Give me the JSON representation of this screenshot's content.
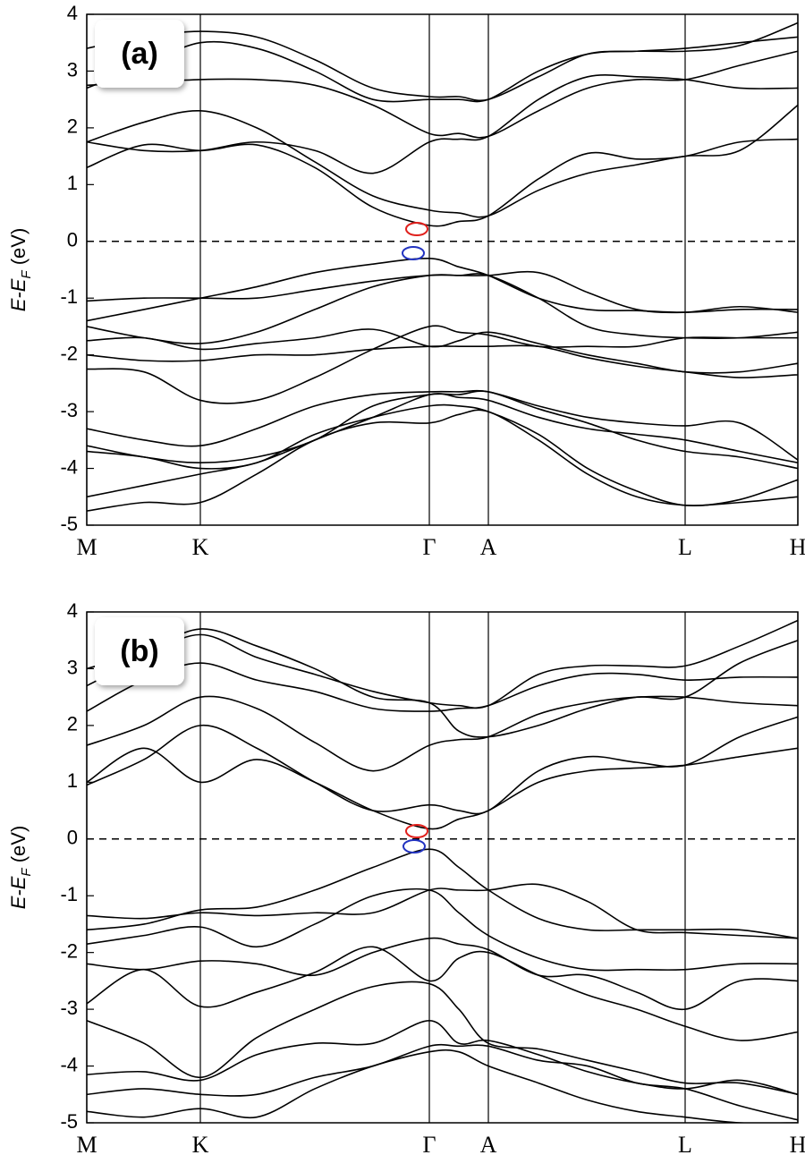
{
  "chart_data": [
    {
      "type": "line",
      "panel_label": "(a)",
      "ylabel": [
        "E-E",
        "F",
        " (eV)"
      ],
      "xlim": [
        0,
        7.95
      ],
      "ylim": [
        -5,
        4
      ],
      "yticks": [
        4,
        3,
        2,
        1,
        0,
        -1,
        -2,
        -3,
        -4,
        -5
      ],
      "xticks": [
        {
          "value": 0,
          "label": "M"
        },
        {
          "value": 1.27,
          "label": "K"
        },
        {
          "value": 3.83,
          "label": "Γ"
        },
        {
          "value": 4.49,
          "label": "A"
        },
        {
          "value": 6.69,
          "label": "L"
        },
        {
          "value": 7.95,
          "label": "H"
        }
      ],
      "hline": 0,
      "x": [
        0,
        0.64,
        1.27,
        1.9,
        2.55,
        3.2,
        3.83,
        4.16,
        4.49,
        5.05,
        5.6,
        6.15,
        6.69,
        7.3,
        7.95
      ],
      "series": [
        {
          "color": "#000000",
          "values": [
            1.3,
            1.7,
            1.6,
            1.7,
            1.3,
            0.6,
            0.28,
            0.35,
            0.45,
            1.1,
            1.55,
            1.45,
            1.5,
            1.75,
            1.8
          ]
        },
        {
          "color": "#000000",
          "values": [
            1.75,
            2.1,
            2.3,
            2.0,
            1.4,
            0.8,
            0.55,
            0.5,
            0.45,
            0.9,
            1.2,
            1.35,
            1.5,
            1.6,
            2.4
          ]
        },
        {
          "color": "#000000",
          "values": [
            1.75,
            1.6,
            1.6,
            1.75,
            1.6,
            1.2,
            1.75,
            1.8,
            1.85,
            2.5,
            2.9,
            2.9,
            2.85,
            2.7,
            2.7
          ]
        },
        {
          "color": "#000000",
          "values": [
            2.75,
            2.8,
            2.85,
            2.85,
            2.75,
            2.4,
            1.9,
            1.9,
            1.85,
            2.3,
            2.7,
            2.85,
            2.85,
            3.1,
            3.35
          ]
        },
        {
          "color": "#000000",
          "values": [
            2.7,
            3.1,
            3.5,
            3.4,
            3.0,
            2.5,
            2.5,
            2.5,
            2.5,
            3.0,
            3.3,
            3.35,
            3.35,
            3.45,
            3.85
          ]
        },
        {
          "color": "#000000",
          "values": [
            3.4,
            3.6,
            3.7,
            3.6,
            3.2,
            2.7,
            2.55,
            2.55,
            2.5,
            2.9,
            3.3,
            3.35,
            3.4,
            3.5,
            3.6
          ]
        },
        {
          "color": "#000000",
          "values": [
            -1.4,
            -1.2,
            -1.0,
            -0.8,
            -0.55,
            -0.4,
            -0.3,
            -0.45,
            -0.6,
            -1.0,
            -1.2,
            -1.22,
            -1.25,
            -1.2,
            -1.2
          ]
        },
        {
          "color": "#000000",
          "values": [
            -1.05,
            -1.0,
            -1.0,
            -1.0,
            -0.85,
            -0.7,
            -0.6,
            -0.6,
            -0.6,
            -0.55,
            -0.9,
            -1.2,
            -1.25,
            -1.15,
            -1.25
          ]
        },
        {
          "color": "#000000",
          "values": [
            -1.5,
            -1.7,
            -1.8,
            -1.6,
            -1.2,
            -0.8,
            -0.6,
            -0.6,
            -0.6,
            -1.0,
            -1.5,
            -1.65,
            -1.7,
            -1.7,
            -1.6
          ]
        },
        {
          "color": "#000000",
          "values": [
            -1.75,
            -1.7,
            -1.9,
            -1.8,
            -1.7,
            -1.55,
            -1.85,
            -1.75,
            -1.6,
            -1.8,
            -2.0,
            -2.15,
            -2.3,
            -2.3,
            -2.15
          ]
        },
        {
          "color": "#000000",
          "values": [
            -2.25,
            -2.3,
            -2.8,
            -2.8,
            -2.4,
            -1.9,
            -1.5,
            -1.6,
            -1.65,
            -1.85,
            -1.85,
            -1.85,
            -1.7,
            -1.7,
            -1.7
          ]
        },
        {
          "color": "#000000",
          "values": [
            -2.0,
            -2.1,
            -2.1,
            -2.0,
            -2.0,
            -1.9,
            -1.85,
            -1.85,
            -1.85,
            -1.85,
            -2.05,
            -2.2,
            -2.3,
            -2.4,
            -2.35
          ]
        },
        {
          "color": "#000000",
          "values": [
            -3.3,
            -3.5,
            -3.6,
            -3.3,
            -2.9,
            -2.7,
            -2.65,
            -2.65,
            -2.65,
            -2.9,
            -3.1,
            -3.2,
            -3.25,
            -3.2,
            -3.85
          ]
        },
        {
          "color": "#000000",
          "values": [
            -3.7,
            -3.8,
            -4.0,
            -3.9,
            -3.4,
            -3.1,
            -2.9,
            -2.9,
            -3.0,
            -3.4,
            -4.0,
            -4.4,
            -4.65,
            -4.55,
            -4.2
          ]
        },
        {
          "color": "#000000",
          "values": [
            -4.5,
            -4.3,
            -4.1,
            -3.9,
            -3.5,
            -3.1,
            -2.7,
            -2.75,
            -2.8,
            -3.1,
            -3.3,
            -3.4,
            -3.5,
            -3.7,
            -3.9
          ]
        },
        {
          "color": "#000000",
          "values": [
            -4.75,
            -4.6,
            -4.6,
            -4.1,
            -3.5,
            -3.2,
            -3.2,
            -3.05,
            -3.0,
            -3.5,
            -4.1,
            -4.5,
            -4.65,
            -4.6,
            -4.5
          ]
        },
        {
          "color": "#000000",
          "values": [
            -3.6,
            -3.8,
            -3.9,
            -3.8,
            -3.5,
            -2.9,
            -2.7,
            -2.7,
            -2.65,
            -2.95,
            -3.2,
            -3.5,
            -3.7,
            -3.8,
            -4.0
          ]
        }
      ]
    },
    {
      "type": "line",
      "panel_label": "(b)",
      "ylabel": [
        "E-E",
        "F",
        " (eV)"
      ],
      "xlim": [
        0,
        7.95
      ],
      "ylim": [
        -5,
        4
      ],
      "yticks": [
        4,
        3,
        2,
        1,
        0,
        -1,
        -2,
        -3,
        -4,
        -5
      ],
      "xticks": [
        {
          "value": 0,
          "label": "M"
        },
        {
          "value": 1.27,
          "label": "K"
        },
        {
          "value": 3.83,
          "label": "Γ"
        },
        {
          "value": 4.49,
          "label": "A"
        },
        {
          "value": 6.69,
          "label": "L"
        },
        {
          "value": 7.95,
          "label": "H"
        }
      ],
      "hline": 0,
      "x": [
        0,
        0.64,
        1.27,
        1.9,
        2.55,
        3.2,
        3.83,
        4.16,
        4.49,
        5.05,
        5.6,
        6.15,
        6.69,
        7.3,
        7.95
      ],
      "series": [
        {
          "color": "#000000",
          "values": [
            1.0,
            1.6,
            1.0,
            1.4,
            1.0,
            0.5,
            0.18,
            0.35,
            0.5,
            1.0,
            1.2,
            1.25,
            1.3,
            1.45,
            1.6
          ]
        },
        {
          "color": "#000000",
          "values": [
            0.95,
            1.4,
            2.0,
            1.6,
            1.0,
            0.5,
            0.6,
            0.5,
            0.5,
            1.2,
            1.45,
            1.35,
            1.3,
            1.8,
            2.15
          ]
        },
        {
          "color": "#000000",
          "values": [
            1.65,
            2.0,
            2.5,
            2.3,
            1.7,
            1.2,
            1.65,
            1.75,
            1.8,
            2.2,
            2.4,
            2.5,
            2.5,
            2.4,
            2.35
          ]
        },
        {
          "color": "#000000",
          "values": [
            2.25,
            2.8,
            3.1,
            2.8,
            2.6,
            2.3,
            2.25,
            2.3,
            2.35,
            2.7,
            2.9,
            2.9,
            2.8,
            2.85,
            2.85
          ]
        },
        {
          "color": "#000000",
          "values": [
            2.7,
            3.2,
            3.6,
            3.2,
            2.9,
            2.6,
            2.4,
            2.35,
            2.35,
            2.9,
            3.05,
            3.05,
            3.05,
            3.4,
            3.85
          ]
        },
        {
          "color": "#000000",
          "values": [
            3.0,
            3.3,
            3.7,
            3.4,
            3.0,
            2.5,
            2.4,
            1.9,
            1.8,
            2.0,
            2.3,
            2.5,
            2.5,
            3.1,
            3.5
          ]
        },
        {
          "color": "#000000",
          "values": [
            -1.6,
            -1.5,
            -1.25,
            -1.2,
            -0.9,
            -0.5,
            -0.18,
            -0.5,
            -0.9,
            -1.4,
            -1.6,
            -1.6,
            -1.6,
            -1.6,
            -1.75
          ]
        },
        {
          "color": "#000000",
          "values": [
            -1.35,
            -1.4,
            -1.3,
            -1.35,
            -1.3,
            -1.3,
            -0.9,
            -0.9,
            -0.9,
            -0.8,
            -1.1,
            -1.6,
            -1.65,
            -1.7,
            -1.75
          ]
        },
        {
          "color": "#000000",
          "values": [
            -1.85,
            -1.7,
            -1.55,
            -1.9,
            -1.5,
            -1.0,
            -0.9,
            -1.3,
            -1.7,
            -2.1,
            -2.3,
            -2.3,
            -2.3,
            -2.2,
            -2.2
          ]
        },
        {
          "color": "#000000",
          "values": [
            -2.2,
            -2.3,
            -2.15,
            -2.2,
            -2.4,
            -2.0,
            -1.75,
            -1.85,
            -1.95,
            -2.4,
            -2.4,
            -2.7,
            -3.0,
            -2.5,
            -2.5
          ]
        },
        {
          "color": "#000000",
          "values": [
            -2.9,
            -2.3,
            -2.95,
            -2.7,
            -2.35,
            -1.9,
            -2.5,
            -2.1,
            -2.0,
            -2.4,
            -2.75,
            -3.0,
            -3.3,
            -3.55,
            -3.4
          ]
        },
        {
          "color": "#000000",
          "values": [
            -3.2,
            -3.6,
            -4.2,
            -3.5,
            -3.0,
            -2.6,
            -2.55,
            -3.0,
            -3.6,
            -3.7,
            -3.9,
            -4.1,
            -4.3,
            -4.3,
            -4.5
          ]
        },
        {
          "color": "#000000",
          "values": [
            -4.15,
            -4.1,
            -4.25,
            -3.8,
            -3.6,
            -3.6,
            -3.2,
            -3.6,
            -3.55,
            -3.8,
            -4.1,
            -4.3,
            -4.4,
            -4.25,
            -4.5
          ]
        },
        {
          "color": "#000000",
          "values": [
            -4.5,
            -4.4,
            -4.5,
            -4.5,
            -4.2,
            -4.0,
            -3.65,
            -3.65,
            -3.65,
            -3.9,
            -4.0,
            -4.3,
            -4.4,
            -4.7,
            -4.95
          ]
        },
        {
          "color": "#000000",
          "values": [
            -4.8,
            -4.9,
            -4.75,
            -4.9,
            -4.4,
            -4.0,
            -3.75,
            -3.75,
            -4.0,
            -4.3,
            -4.6,
            -4.8,
            -4.9,
            -5.0,
            -5.0
          ]
        }
      ]
    }
  ]
}
